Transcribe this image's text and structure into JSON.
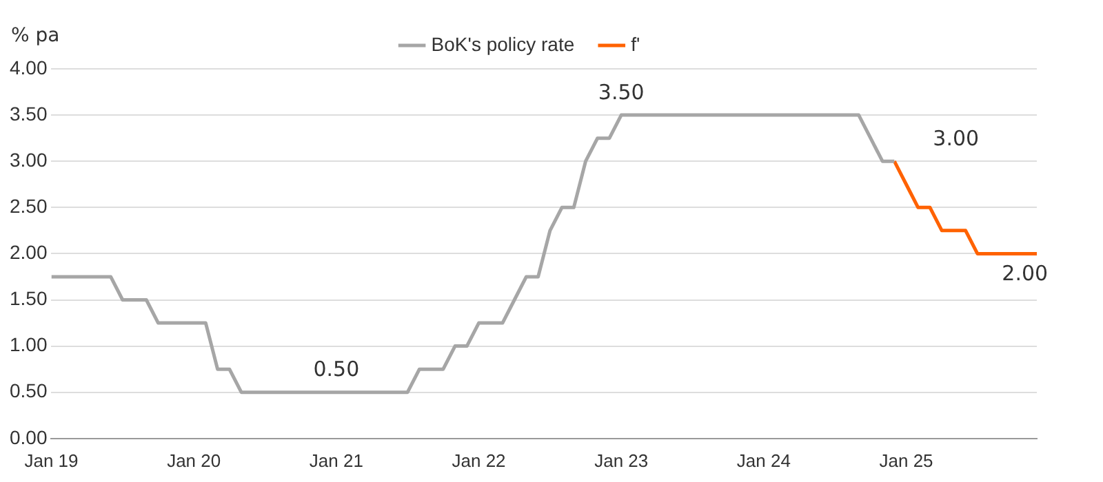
{
  "chart_data": {
    "type": "line",
    "ylabel": "% pa",
    "legend": "top",
    "grid": "y",
    "marker": "none",
    "line_style": "solid",
    "xlim": [
      "2019-01",
      "2025-12"
    ],
    "xticks": [
      {
        "value": "2019-01",
        "label": "Jan 19"
      },
      {
        "value": "2020-01",
        "label": "Jan 20"
      },
      {
        "value": "2021-01",
        "label": "Jan 21"
      },
      {
        "value": "2022-01",
        "label": "Jan 22"
      },
      {
        "value": "2023-01",
        "label": "Jan 23"
      },
      {
        "value": "2024-01",
        "label": "Jan 24"
      },
      {
        "value": "2025-01",
        "label": "Jan 25"
      }
    ],
    "ylim": [
      0,
      4
    ],
    "yticks": [
      {
        "value": 0,
        "label": "0.00"
      },
      {
        "value": 0.5,
        "label": "0.50"
      },
      {
        "value": 1,
        "label": "1.00"
      },
      {
        "value": 1.5,
        "label": "1.50"
      },
      {
        "value": 2,
        "label": "2.00"
      },
      {
        "value": 2.5,
        "label": "2.50"
      },
      {
        "value": 3,
        "label": "3.00"
      },
      {
        "value": 3.5,
        "label": "3.50"
      },
      {
        "value": 4,
        "label": "4.00"
      }
    ],
    "series": [
      {
        "name": "BoK's policy rate",
        "color": "#a6a6a6",
        "x": [
          "2019-01",
          "2019-06",
          "2019-07",
          "2019-09",
          "2019-10",
          "2020-02",
          "2020-03",
          "2020-04",
          "2020-05",
          "2021-07",
          "2021-08",
          "2021-10",
          "2021-11",
          "2021-12",
          "2022-01",
          "2022-03",
          "2022-04",
          "2022-05",
          "2022-06",
          "2022-07",
          "2022-08",
          "2022-09",
          "2022-10",
          "2022-11",
          "2022-12",
          "2023-01",
          "2024-09",
          "2024-10",
          "2024-11",
          "2024-12"
        ],
        "values": [
          1.75,
          1.75,
          1.5,
          1.5,
          1.25,
          1.25,
          0.75,
          0.75,
          0.5,
          0.5,
          0.75,
          0.75,
          1.0,
          1.0,
          1.25,
          1.25,
          1.5,
          1.75,
          1.75,
          2.25,
          2.5,
          2.5,
          3.0,
          3.25,
          3.25,
          3.5,
          3.5,
          3.25,
          3.0,
          3.0
        ]
      },
      {
        "name": "f'",
        "color": "#ff6200",
        "x": [
          "2024-12",
          "2025-01",
          "2025-02",
          "2025-03",
          "2025-04",
          "2025-06",
          "2025-07",
          "2025-12"
        ],
        "values": [
          3.0,
          2.75,
          2.5,
          2.5,
          2.25,
          2.25,
          2.0,
          2.0
        ]
      }
    ],
    "annotations": [
      {
        "text": "0.50",
        "x": "2021-01",
        "y": 0.5
      },
      {
        "text": "3.50",
        "x": "2023-01",
        "y": 3.5
      },
      {
        "text": "3.00",
        "x": "2024-12",
        "y": 3.0
      },
      {
        "text": "2.00",
        "x": "2025-11",
        "y": 2.0
      }
    ]
  }
}
